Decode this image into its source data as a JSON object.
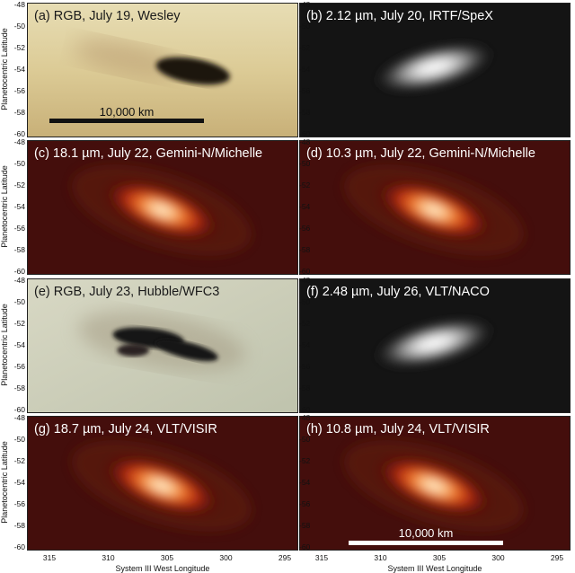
{
  "panels": [
    {
      "label": "(a) RGB, July 19, Wesley",
      "style": "rgb-light",
      "labelColor": "dark"
    },
    {
      "label": "(b) 2.12 µm, July 20, IRTF/SpeX",
      "style": "gray",
      "labelColor": "light"
    },
    {
      "label": "(c) 18.1 µm, July 22, Gemini-N/Michelle",
      "style": "heat",
      "labelColor": "light"
    },
    {
      "label": "(d) 10.3 µm, July 22, Gemini-N/Michelle",
      "style": "heat",
      "labelColor": "light"
    },
    {
      "label": "(e) RGB, July 23, Hubble/WFC3",
      "style": "rgb-gray",
      "labelColor": "dark"
    },
    {
      "label": "(f) 2.48 µm, July 26, VLT/NACO",
      "style": "gray",
      "labelColor": "light"
    },
    {
      "label": "(g) 18.7 µm, July 24, VLT/VISIR",
      "style": "heat",
      "labelColor": "light"
    },
    {
      "label": "(h) 10.8 µm, July 24, VLT/VISIR",
      "style": "heat",
      "labelColor": "light"
    }
  ],
  "y_ticks": [
    "-48",
    "-50",
    "-52",
    "-54",
    "-56",
    "-58",
    "-60"
  ],
  "x_ticks": [
    "315",
    "310",
    "305",
    "300",
    "295"
  ],
  "y_axis_label": "Planetocentric Latitude",
  "x_axis_label": "System III West Longitude",
  "scale_bars": [
    {
      "label": "10,000 km",
      "panel": "a",
      "color": "#111111"
    },
    {
      "label": "10,000 km",
      "panel": "h",
      "color": "#ffffff"
    }
  ]
}
